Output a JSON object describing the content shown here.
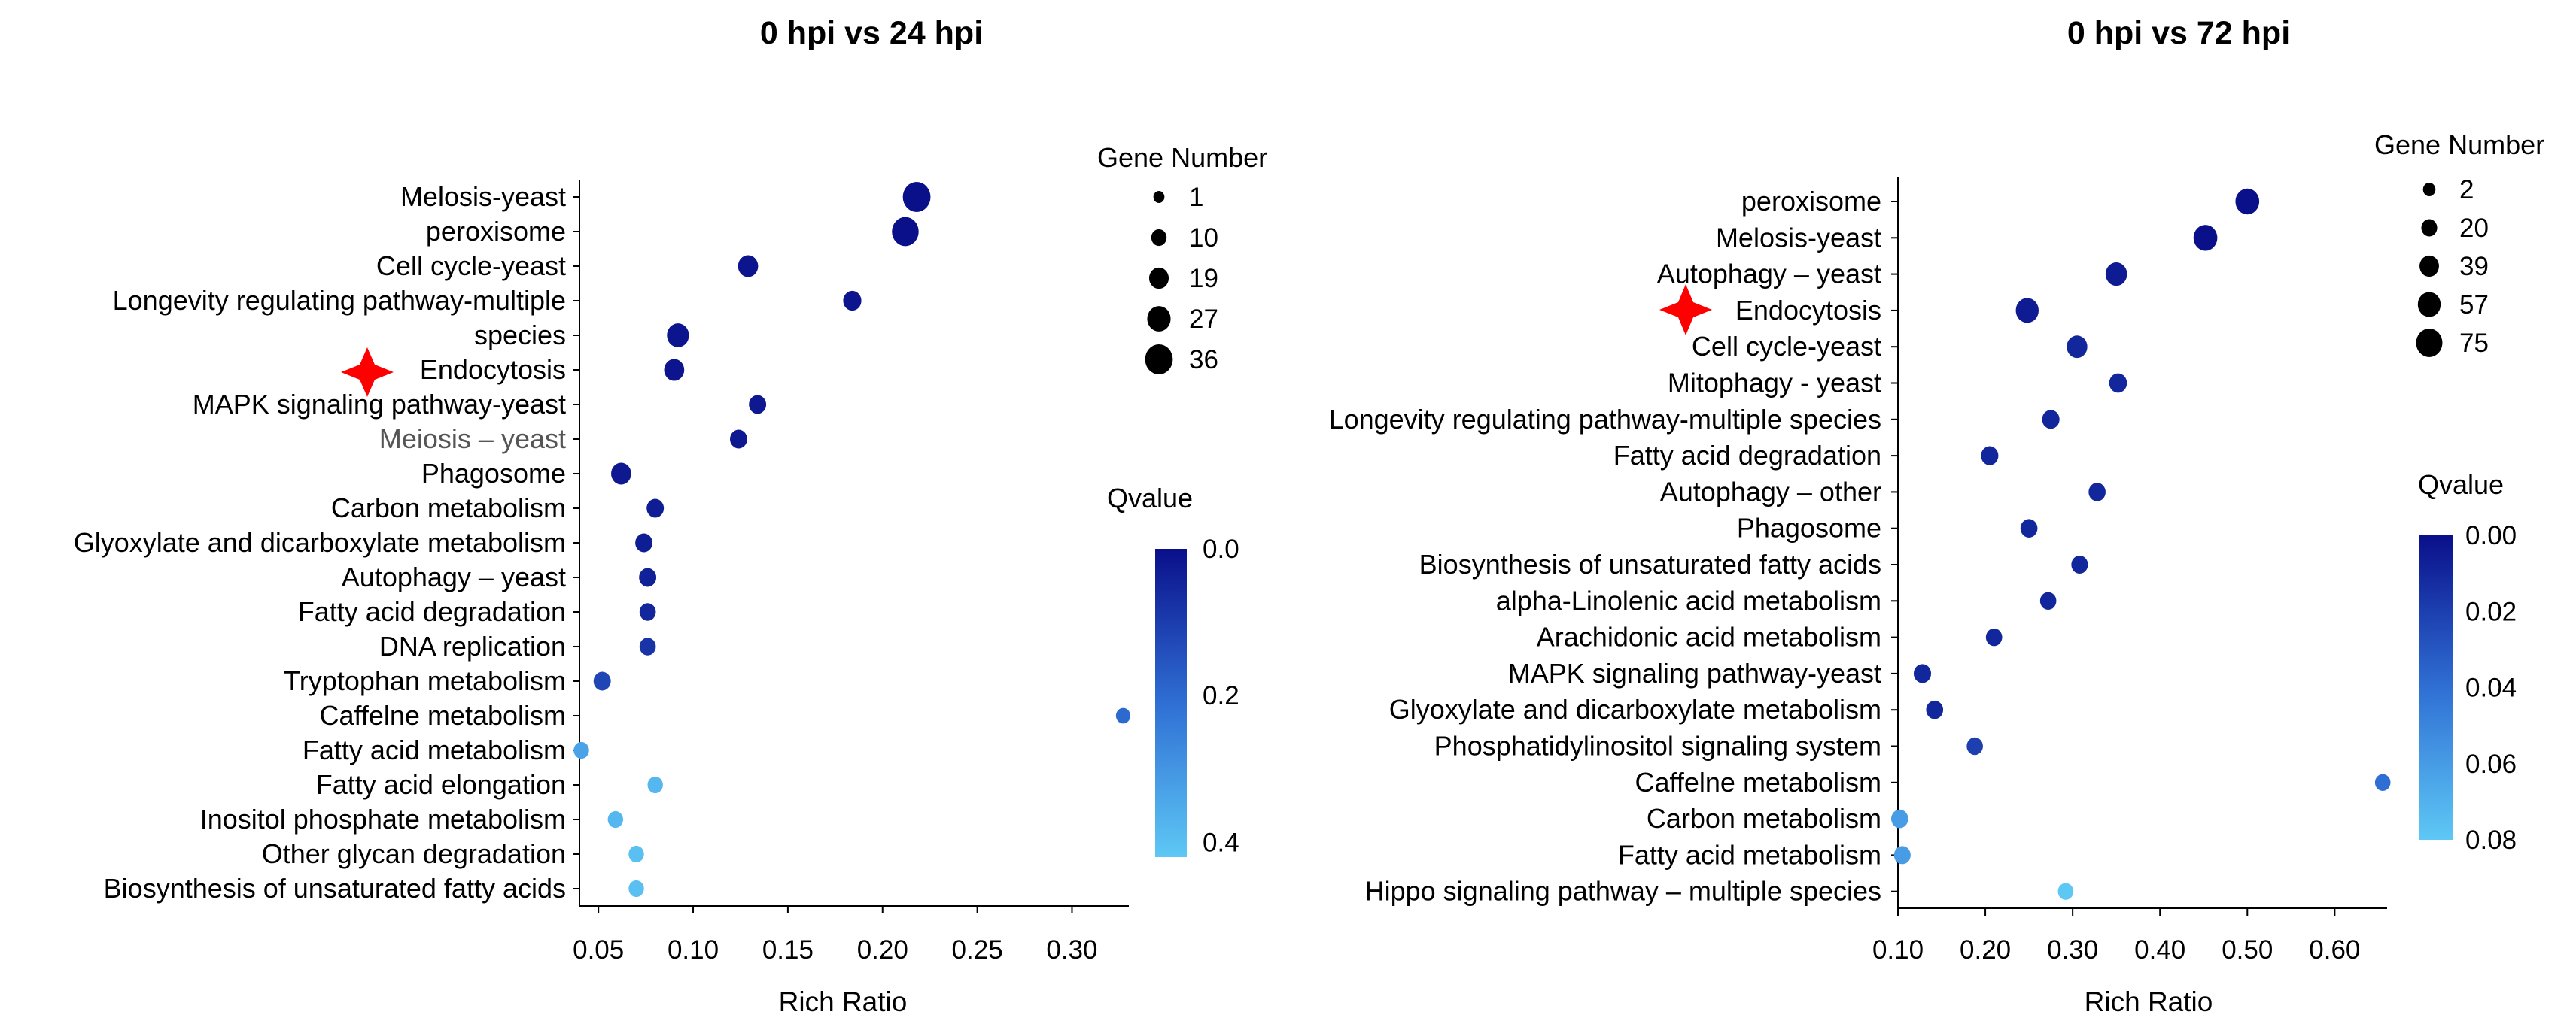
{
  "chart_data": [
    {
      "type": "scatter",
      "title": "0 hpi vs 24 hpi",
      "xlabel": "Rich Ratio",
      "ylabel": "",
      "xlim": [
        0.04,
        0.33
      ],
      "xticks": [
        "0.05",
        "0.10",
        "0.15",
        "0.20",
        "0.25",
        "0.30"
      ],
      "xtick_values": [
        0.05,
        0.1,
        0.15,
        0.2,
        0.25,
        0.3
      ],
      "categories": [
        "Melosis-yeast",
        "peroxisome",
        "Cell cycle-yeast",
        "Longevity regulating pathway-multiple",
        "species",
        "Endocytosis",
        "MAPK signaling pathway-yeast",
        "Meiosis – yeast",
        "Phagosome",
        "Carbon metabolism",
        "Glyoxylate and dicarboxylate metabolism",
        "Autophagy – yeast",
        "Fatty acid degradation",
        "DNA replication",
        "Tryptophan metabolism",
        "Caffelne metabolism",
        "Fatty acid metabolism",
        "Fatty acid elongation",
        "Inositol phosphate metabolism",
        "Other glycan degradation",
        "Biosynthesis of unsaturated fatty acids"
      ],
      "highlighted_category": "Endocytosis",
      "points": [
        {
          "rich_ratio": 0.218,
          "gene_number": 36,
          "qvalue": 0.0
        },
        {
          "rich_ratio": 0.212,
          "gene_number": 34,
          "qvalue": 0.0
        },
        {
          "rich_ratio": 0.129,
          "gene_number": 20,
          "qvalue": 0.01
        },
        {
          "rich_ratio": 0.184,
          "gene_number": 16,
          "qvalue": 0.01
        },
        {
          "rich_ratio": 0.092,
          "gene_number": 24,
          "qvalue": 0.01
        },
        {
          "rich_ratio": 0.09,
          "gene_number": 20,
          "qvalue": 0.01
        },
        {
          "rich_ratio": 0.134,
          "gene_number": 14,
          "qvalue": 0.02
        },
        {
          "rich_ratio": 0.124,
          "gene_number": 14,
          "qvalue": 0.02
        },
        {
          "rich_ratio": 0.062,
          "gene_number": 20,
          "qvalue": 0.02
        },
        {
          "rich_ratio": 0.08,
          "gene_number": 14,
          "qvalue": 0.03
        },
        {
          "rich_ratio": 0.074,
          "gene_number": 14,
          "qvalue": 0.03
        },
        {
          "rich_ratio": 0.076,
          "gene_number": 14,
          "qvalue": 0.04
        },
        {
          "rich_ratio": 0.076,
          "gene_number": 12,
          "qvalue": 0.05
        },
        {
          "rich_ratio": 0.076,
          "gene_number": 12,
          "qvalue": 0.08
        },
        {
          "rich_ratio": 0.052,
          "gene_number": 14,
          "qvalue": 0.12
        },
        {
          "rich_ratio": 0.327,
          "gene_number": 8,
          "qvalue": 0.2
        },
        {
          "rich_ratio": 0.041,
          "gene_number": 10,
          "qvalue": 0.33
        },
        {
          "rich_ratio": 0.08,
          "gene_number": 10,
          "qvalue": 0.38
        },
        {
          "rich_ratio": 0.059,
          "gene_number": 10,
          "qvalue": 0.38
        },
        {
          "rich_ratio": 0.07,
          "gene_number": 10,
          "qvalue": 0.4
        },
        {
          "rich_ratio": 0.07,
          "gene_number": 10,
          "qvalue": 0.4
        }
      ],
      "size_legend": {
        "title": "Gene Number",
        "values": [
          1,
          10,
          19,
          27,
          36
        ]
      },
      "color_legend": {
        "title": "Qvalue",
        "min": 0.0,
        "max": 0.42,
        "ticks": [
          "0.0",
          "0.2",
          "0.4"
        ],
        "tick_values": [
          0.0,
          0.2,
          0.4
        ]
      }
    },
    {
      "type": "scatter",
      "title": "0 hpi vs 72 hpi",
      "xlabel": "Rich Ratio",
      "ylabel": "",
      "xlim": [
        0.1,
        0.66
      ],
      "xticks": [
        "0.10",
        "0.20",
        "0.30",
        "0.40",
        "0.50",
        "0.60"
      ],
      "xtick_values": [
        0.1,
        0.2,
        0.3,
        0.4,
        0.5,
        0.6
      ],
      "categories": [
        "peroxisome",
        "Melosis-yeast",
        "Autophagy – yeast",
        "Endocytosis",
        "Cell cycle-yeast",
        "Mitophagy - yeast",
        "Longevity regulating pathway-multiple species",
        "Fatty acid degradation",
        "Autophagy – other",
        "Phagosome",
        "Biosynthesis of unsaturated fatty acids",
        "alpha-Linolenic acid metabolism",
        "Arachidonic acid metabolism",
        "MAPK signaling pathway-yeast",
        "Glyoxylate and dicarboxylate metabolism",
        "Phosphatidylinositol signaling system",
        "Caffelne metabolism",
        "Carbon metabolism",
        "Fatty acid metabolism",
        "Hippo signaling pathway – multiple species"
      ],
      "highlighted_category": "Endocytosis",
      "points": [
        {
          "rich_ratio": 0.5,
          "gene_number": 62,
          "qvalue": 0.0
        },
        {
          "rich_ratio": 0.452,
          "gene_number": 62,
          "qvalue": 0.0
        },
        {
          "rich_ratio": 0.35,
          "gene_number": 50,
          "qvalue": 0.005
        },
        {
          "rich_ratio": 0.248,
          "gene_number": 57,
          "qvalue": 0.005
        },
        {
          "rich_ratio": 0.305,
          "gene_number": 45,
          "qvalue": 0.01
        },
        {
          "rich_ratio": 0.352,
          "gene_number": 30,
          "qvalue": 0.01
        },
        {
          "rich_ratio": 0.275,
          "gene_number": 28,
          "qvalue": 0.01
        },
        {
          "rich_ratio": 0.205,
          "gene_number": 28,
          "qvalue": 0.01
        },
        {
          "rich_ratio": 0.328,
          "gene_number": 26,
          "qvalue": 0.01
        },
        {
          "rich_ratio": 0.25,
          "gene_number": 26,
          "qvalue": 0.01
        },
        {
          "rich_ratio": 0.308,
          "gene_number": 24,
          "qvalue": 0.01
        },
        {
          "rich_ratio": 0.272,
          "gene_number": 22,
          "qvalue": 0.01
        },
        {
          "rich_ratio": 0.21,
          "gene_number": 22,
          "qvalue": 0.01
        },
        {
          "rich_ratio": 0.128,
          "gene_number": 28,
          "qvalue": 0.01
        },
        {
          "rich_ratio": 0.142,
          "gene_number": 26,
          "qvalue": 0.01
        },
        {
          "rich_ratio": 0.188,
          "gene_number": 22,
          "qvalue": 0.02
        },
        {
          "rich_ratio": 0.655,
          "gene_number": 18,
          "qvalue": 0.04
        },
        {
          "rich_ratio": 0.102,
          "gene_number": 26,
          "qvalue": 0.06
        },
        {
          "rich_ratio": 0.105,
          "gene_number": 24,
          "qvalue": 0.06
        },
        {
          "rich_ratio": 0.292,
          "gene_number": 18,
          "qvalue": 0.08
        }
      ],
      "size_legend": {
        "title": "Gene Number",
        "values": [
          2,
          20,
          39,
          57,
          75
        ]
      },
      "color_legend": {
        "title": "Qvalue",
        "min": 0.0,
        "max": 0.08,
        "ticks": [
          "0.00",
          "0.02",
          "0.04",
          "0.06",
          "0.08"
        ],
        "tick_values": [
          0.0,
          0.02,
          0.04,
          0.06,
          0.08
        ]
      }
    }
  ]
}
